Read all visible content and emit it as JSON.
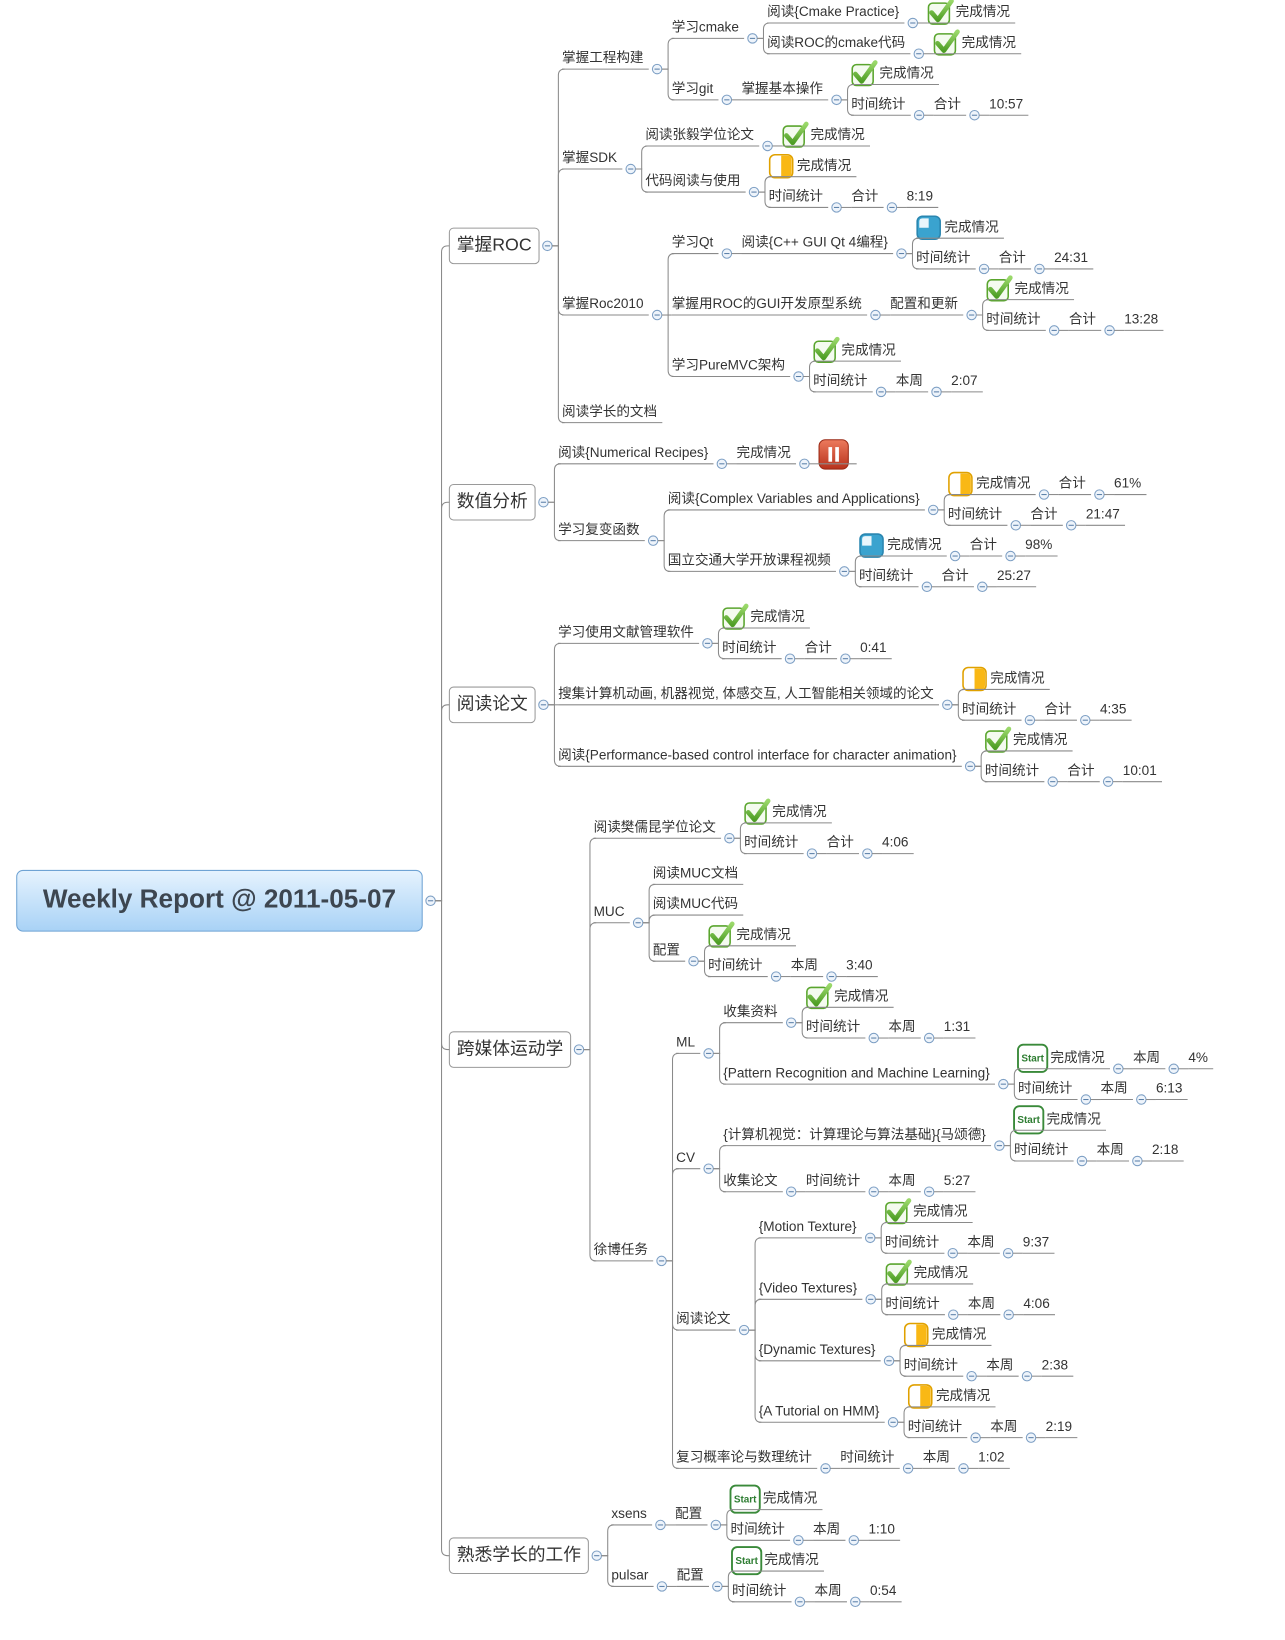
{
  "root": {
    "text": "Weekly Report @ 2011-05-07",
    "children": [
      {
        "text": "掌握ROC",
        "children": [
          {
            "text": "掌握工程构建",
            "children": [
              {
                "text": "学习cmake",
                "children": [
                  {
                    "text": "阅读{Cmake Practice}",
                    "children": [
                      {
                        "text": "完成情况",
                        "icon": "check"
                      }
                    ]
                  },
                  {
                    "text": "阅读ROC的cmake代码",
                    "children": [
                      {
                        "text": "完成情况",
                        "icon": "check"
                      }
                    ]
                  }
                ]
              },
              {
                "text": "学习git",
                "children": [
                  {
                    "text": "掌握基本操作",
                    "children": [
                      {
                        "text": "完成情况",
                        "icon": "check"
                      },
                      {
                        "text": "时间统计",
                        "children": [
                          {
                            "text": "合计",
                            "children": [
                              {
                                "text": "10:57"
                              }
                            ]
                          }
                        ]
                      }
                    ]
                  }
                ]
              }
            ]
          },
          {
            "text": "掌握SDK",
            "children": [
              {
                "text": "阅读张毅学位论文",
                "children": [
                  {
                    "text": "完成情况",
                    "icon": "check"
                  }
                ]
              },
              {
                "text": "代码阅读与使用",
                "children": [
                  {
                    "text": "完成情况",
                    "icon": "half"
                  },
                  {
                    "text": "时间统计",
                    "children": [
                      {
                        "text": "合计",
                        "children": [
                          {
                            "text": "8:19"
                          }
                        ]
                      }
                    ]
                  }
                ]
              }
            ]
          },
          {
            "text": "掌握Roc2010",
            "children": [
              {
                "text": "学习Qt",
                "children": [
                  {
                    "text": "阅读{C++ GUI Qt 4编程}",
                    "children": [
                      {
                        "text": "完成情况",
                        "icon": "quarter"
                      },
                      {
                        "text": "时间统计",
                        "children": [
                          {
                            "text": "合计",
                            "children": [
                              {
                                "text": "24:31"
                              }
                            ]
                          }
                        ]
                      }
                    ]
                  }
                ]
              },
              {
                "text": "掌握用ROC的GUI开发原型系统",
                "children": [
                  {
                    "text": "配置和更新",
                    "children": [
                      {
                        "text": "完成情况",
                        "icon": "check"
                      },
                      {
                        "text": "时间统计",
                        "children": [
                          {
                            "text": "合计",
                            "children": [
                              {
                                "text": "13:28"
                              }
                            ]
                          }
                        ]
                      }
                    ]
                  }
                ]
              },
              {
                "text": "学习PureMVC架构",
                "children": [
                  {
                    "text": "完成情况",
                    "icon": "check"
                  },
                  {
                    "text": "时间统计",
                    "children": [
                      {
                        "text": "本周",
                        "children": [
                          {
                            "text": "2:07"
                          }
                        ]
                      }
                    ]
                  }
                ]
              }
            ]
          },
          {
            "text": "阅读学长的文档"
          }
        ]
      },
      {
        "text": "数值分析",
        "children": [
          {
            "text": "阅读{Numerical Recipes}",
            "children": [
              {
                "text": "完成情况",
                "children": [
                  {
                    "icon": "pause"
                  }
                ]
              }
            ]
          },
          {
            "text": "学习复变函数",
            "children": [
              {
                "text": "阅读{Complex Variables and Applications}",
                "children": [
                  {
                    "text": "完成情况",
                    "icon": "half",
                    "children": [
                      {
                        "text": "合计",
                        "children": [
                          {
                            "text": "61%"
                          }
                        ]
                      }
                    ]
                  },
                  {
                    "text": "时间统计",
                    "children": [
                      {
                        "text": "合计",
                        "children": [
                          {
                            "text": "21:47"
                          }
                        ]
                      }
                    ]
                  }
                ]
              },
              {
                "text": "国立交通大学开放课程视频",
                "children": [
                  {
                    "text": "完成情况",
                    "icon": "quarter",
                    "children": [
                      {
                        "text": "合计",
                        "children": [
                          {
                            "text": "98%"
                          }
                        ]
                      }
                    ]
                  },
                  {
                    "text": "时间统计",
                    "children": [
                      {
                        "text": "合计",
                        "children": [
                          {
                            "text": "25:27"
                          }
                        ]
                      }
                    ]
                  }
                ]
              }
            ]
          }
        ]
      },
      {
        "text": "阅读论文",
        "children": [
          {
            "text": "学习使用文献管理软件",
            "children": [
              {
                "text": "完成情况",
                "icon": "check"
              },
              {
                "text": "时间统计",
                "children": [
                  {
                    "text": "合计",
                    "children": [
                      {
                        "text": "0:41"
                      }
                    ]
                  }
                ]
              }
            ]
          },
          {
            "text": "搜集计算机动画, 机器视觉, 体感交互, 人工智能相关领域的论文",
            "children": [
              {
                "text": "完成情况",
                "icon": "half"
              },
              {
                "text": "时间统计",
                "children": [
                  {
                    "text": "合计",
                    "children": [
                      {
                        "text": "4:35"
                      }
                    ]
                  }
                ]
              }
            ]
          },
          {
            "text": "阅读{Performance-based control interface for character animation}",
            "children": [
              {
                "text": "完成情况",
                "icon": "check"
              },
              {
                "text": "时间统计",
                "children": [
                  {
                    "text": "合计",
                    "children": [
                      {
                        "text": "10:01"
                      }
                    ]
                  }
                ]
              }
            ]
          }
        ]
      },
      {
        "text": "跨媒体运动学",
        "children": [
          {
            "text": "阅读樊儒昆学位论文",
            "children": [
              {
                "text": "完成情况",
                "icon": "check"
              },
              {
                "text": "时间统计",
                "children": [
                  {
                    "text": "合计",
                    "children": [
                      {
                        "text": "4:06"
                      }
                    ]
                  }
                ]
              }
            ]
          },
          {
            "text": "MUC",
            "children": [
              {
                "text": "阅读MUC文档"
              },
              {
                "text": "阅读MUC代码"
              },
              {
                "text": "配置",
                "children": [
                  {
                    "text": "完成情况",
                    "icon": "check"
                  },
                  {
                    "text": "时间统计",
                    "children": [
                      {
                        "text": "本周",
                        "children": [
                          {
                            "text": "3:40"
                          }
                        ]
                      }
                    ]
                  }
                ]
              }
            ]
          },
          {
            "text": "徐博任务",
            "children": [
              {
                "text": "ML",
                "children": [
                  {
                    "text": "收集资料",
                    "children": [
                      {
                        "text": "完成情况",
                        "icon": "check"
                      },
                      {
                        "text": "时间统计",
                        "children": [
                          {
                            "text": "本周",
                            "children": [
                              {
                                "text": "1:31"
                              }
                            ]
                          }
                        ]
                      }
                    ]
                  },
                  {
                    "text": "{Pattern Recognition and Machine Learning}",
                    "children": [
                      {
                        "text": "完成情况",
                        "icon": "Start",
                        "children": [
                          {
                            "text": "本周",
                            "children": [
                              {
                                "text": "4%"
                              }
                            ]
                          }
                        ]
                      },
                      {
                        "text": "时间统计",
                        "children": [
                          {
                            "text": "本周",
                            "children": [
                              {
                                "text": "6:13"
                              }
                            ]
                          }
                        ]
                      }
                    ]
                  }
                ]
              },
              {
                "text": "CV",
                "children": [
                  {
                    "text": "{计算机视觉：计算理论与算法基础}{马颂德}",
                    "children": [
                      {
                        "text": "完成情况",
                        "icon": "Start"
                      },
                      {
                        "text": "时间统计",
                        "children": [
                          {
                            "text": "本周",
                            "children": [
                              {
                                "text": "2:18"
                              }
                            ]
                          }
                        ]
                      }
                    ]
                  },
                  {
                    "text": "收集论文",
                    "children": [
                      {
                        "text": "时间统计",
                        "children": [
                          {
                            "text": "本周",
                            "children": [
                              {
                                "text": "5:27"
                              }
                            ]
                          }
                        ]
                      }
                    ]
                  }
                ]
              },
              {
                "text": "阅读论文",
                "children": [
                  {
                    "text": "{Motion Texture}",
                    "children": [
                      {
                        "text": "完成情况",
                        "icon": "check"
                      },
                      {
                        "text": "时间统计",
                        "children": [
                          {
                            "text": "本周",
                            "children": [
                              {
                                "text": "9:37"
                              }
                            ]
                          }
                        ]
                      }
                    ]
                  },
                  {
                    "text": "{Video Textures}",
                    "children": [
                      {
                        "text": "完成情况",
                        "icon": "check"
                      },
                      {
                        "text": "时间统计",
                        "children": [
                          {
                            "text": "本周",
                            "children": [
                              {
                                "text": "4:06"
                              }
                            ]
                          }
                        ]
                      }
                    ]
                  },
                  {
                    "text": "{Dynamic Textures}",
                    "children": [
                      {
                        "text": "完成情况",
                        "icon": "half"
                      },
                      {
                        "text": "时间统计",
                        "children": [
                          {
                            "text": "本周",
                            "children": [
                              {
                                "text": "2:38"
                              }
                            ]
                          }
                        ]
                      }
                    ]
                  },
                  {
                    "text": "{A Tutorial on HMM}",
                    "children": [
                      {
                        "text": "完成情况",
                        "icon": "half"
                      },
                      {
                        "text": "时间统计",
                        "children": [
                          {
                            "text": "本周",
                            "children": [
                              {
                                "text": "2:19"
                              }
                            ]
                          }
                        ]
                      }
                    ]
                  }
                ]
              },
              {
                "text": "复习概率论与数理统计",
                "children": [
                  {
                    "text": "时间统计",
                    "children": [
                      {
                        "text": "本周",
                        "children": [
                          {
                            "text": "1:02"
                          }
                        ]
                      }
                    ]
                  }
                ]
              }
            ]
          }
        ]
      },
      {
        "text": "熟悉学长的工作",
        "children": [
          {
            "text": "xsens",
            "children": [
              {
                "text": "配置",
                "children": [
                  {
                    "text": "完成情况",
                    "icon": "Start"
                  },
                  {
                    "text": "时间统计",
                    "children": [
                      {
                        "text": "本周",
                        "children": [
                          {
                            "text": "1:10"
                          }
                        ]
                      }
                    ]
                  }
                ]
              }
            ]
          },
          {
            "text": "pulsar",
            "children": [
              {
                "text": "配置",
                "children": [
                  {
                    "text": "完成情况",
                    "icon": "Start"
                  },
                  {
                    "text": "时间统计",
                    "children": [
                      {
                        "text": "本周",
                        "children": [
                          {
                            "text": "0:54"
                          }
                        ]
                      }
                    ]
                  }
                ]
              }
            ]
          }
        ]
      }
    ]
  }
}
